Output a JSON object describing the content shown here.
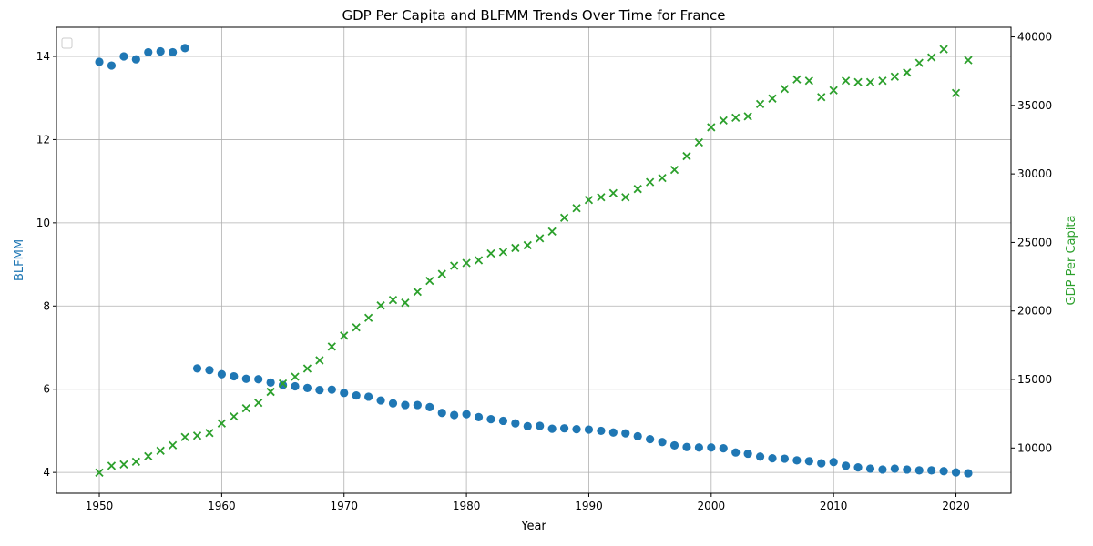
{
  "chart_data": {
    "type": "scatter",
    "title": "GDP Per Capita and BLFMM Trends Over Time for France",
    "xlabel": "Year",
    "ylabel_left": "BLFMM",
    "ylabel_right": "GDP Per Capita",
    "xlim": [
      1946.5,
      2024.5
    ],
    "ylim_left": [
      3.5,
      14.7
    ],
    "ylim_right": [
      6700,
      40700
    ],
    "xticks": [
      1950,
      1960,
      1970,
      1980,
      1990,
      2000,
      2010,
      2020
    ],
    "yticks_left": [
      4,
      6,
      8,
      10,
      12,
      14
    ],
    "yticks_right": [
      10000,
      15000,
      20000,
      25000,
      30000,
      35000,
      40000
    ],
    "grid": true,
    "legend": "top-left",
    "colors": {
      "blfmm": "#1f77b4",
      "gdp": "#2ca02c"
    },
    "series": [
      {
        "key": "blfmm",
        "axis": "left",
        "marker": "circle",
        "x": [
          1950,
          1951,
          1952,
          1953,
          1954,
          1955,
          1956,
          1957,
          1958,
          1959,
          1960,
          1961,
          1962,
          1963,
          1964,
          1965,
          1966,
          1967,
          1968,
          1969,
          1970,
          1971,
          1972,
          1973,
          1974,
          1975,
          1976,
          1977,
          1978,
          1979,
          1980,
          1981,
          1982,
          1983,
          1984,
          1985,
          1986,
          1987,
          1988,
          1989,
          1990,
          1991,
          1992,
          1993,
          1994,
          1995,
          1996,
          1997,
          1998,
          1999,
          2000,
          2001,
          2002,
          2003,
          2004,
          2005,
          2006,
          2007,
          2008,
          2009,
          2010,
          2011,
          2012,
          2013,
          2014,
          2015,
          2016,
          2017,
          2018,
          2019,
          2020,
          2021
        ],
        "y": [
          13.87,
          13.78,
          14.0,
          13.93,
          14.1,
          14.12,
          14.1,
          14.2,
          6.5,
          6.46,
          6.36,
          6.31,
          6.25,
          6.24,
          6.16,
          6.1,
          6.07,
          6.03,
          5.98,
          5.99,
          5.91,
          5.85,
          5.82,
          5.73,
          5.66,
          5.62,
          5.62,
          5.57,
          5.43,
          5.38,
          5.4,
          5.33,
          5.28,
          5.24,
          5.18,
          5.11,
          5.12,
          5.05,
          5.06,
          5.04,
          5.03,
          5.0,
          4.96,
          4.94,
          4.87,
          4.8,
          4.73,
          4.65,
          4.61,
          4.6,
          4.6,
          4.58,
          4.48,
          4.45,
          4.38,
          4.34,
          4.33,
          4.29,
          4.27,
          4.22,
          4.25,
          4.16,
          4.12,
          4.09,
          4.07,
          4.09,
          4.07,
          4.05,
          4.05,
          4.03,
          4.0,
          3.98
        ]
      },
      {
        "key": "gdp",
        "axis": "right",
        "marker": "x",
        "x": [
          1950,
          1951,
          1952,
          1953,
          1954,
          1955,
          1956,
          1957,
          1958,
          1959,
          1960,
          1961,
          1962,
          1963,
          1964,
          1965,
          1966,
          1967,
          1968,
          1969,
          1970,
          1971,
          1972,
          1973,
          1974,
          1975,
          1976,
          1977,
          1978,
          1979,
          1980,
          1981,
          1982,
          1983,
          1984,
          1985,
          1986,
          1987,
          1988,
          1989,
          1990,
          1991,
          1992,
          1993,
          1994,
          1995,
          1996,
          1997,
          1998,
          1999,
          2000,
          2001,
          2002,
          2003,
          2004,
          2005,
          2006,
          2007,
          2008,
          2009,
          2010,
          2011,
          2012,
          2013,
          2014,
          2015,
          2016,
          2017,
          2018,
          2019,
          2020,
          2021
        ],
        "y": [
          8200,
          8700,
          8800,
          9000,
          9400,
          9800,
          10200,
          10800,
          10900,
          11100,
          11800,
          12300,
          12900,
          13300,
          14100,
          14700,
          15200,
          15800,
          16400,
          17400,
          18200,
          18800,
          19500,
          20400,
          20800,
          20600,
          21400,
          22200,
          22700,
          23300,
          23500,
          23700,
          24200,
          24300,
          24600,
          24800,
          25300,
          25800,
          26800,
          27500,
          28100,
          28300,
          28600,
          28300,
          28900,
          29400,
          29700,
          30300,
          31300,
          32300,
          33400,
          33900,
          34100,
          34200,
          35100,
          35500,
          36200,
          36900,
          36800,
          35600,
          36100,
          36800,
          36700,
          36700,
          36800,
          37100,
          37400,
          38100,
          38500,
          39100,
          35900,
          38300
        ]
      }
    ]
  }
}
